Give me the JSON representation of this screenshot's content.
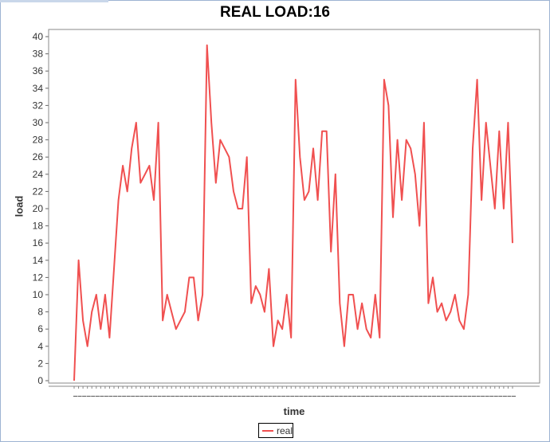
{
  "chart_data": {
    "type": "line",
    "title": "REAL LOAD:16",
    "xlabel": "time",
    "ylabel": "load",
    "ylim": [
      0,
      41
    ],
    "yticks": [
      0,
      2,
      4,
      6,
      8,
      10,
      12,
      14,
      16,
      18,
      20,
      22,
      24,
      26,
      28,
      30,
      32,
      34,
      36,
      38,
      40
    ],
    "grid": false,
    "legend_position": "bottom-center",
    "series": [
      {
        "name": "real",
        "color": "#f05050",
        "values": [
          0,
          14,
          7,
          4,
          8,
          10,
          6,
          10,
          5,
          13,
          21,
          25,
          22,
          27,
          30,
          23,
          24,
          25,
          21,
          30,
          7,
          10,
          8,
          6,
          7,
          8,
          12,
          12,
          7,
          10,
          39,
          30,
          23,
          28,
          27,
          26,
          22,
          20,
          20,
          26,
          9,
          11,
          10,
          8,
          13,
          4,
          7,
          6,
          10,
          5,
          35,
          26,
          21,
          22,
          27,
          21,
          29,
          29,
          15,
          24,
          9,
          4,
          10,
          10,
          6,
          9,
          6,
          5,
          10,
          5,
          35,
          32,
          19,
          28,
          21,
          28,
          27,
          24,
          18,
          30,
          9,
          12,
          8,
          9,
          7,
          8,
          10,
          7,
          6,
          10,
          27,
          35,
          21,
          30,
          25,
          20,
          29,
          20,
          30,
          16
        ]
      }
    ]
  }
}
